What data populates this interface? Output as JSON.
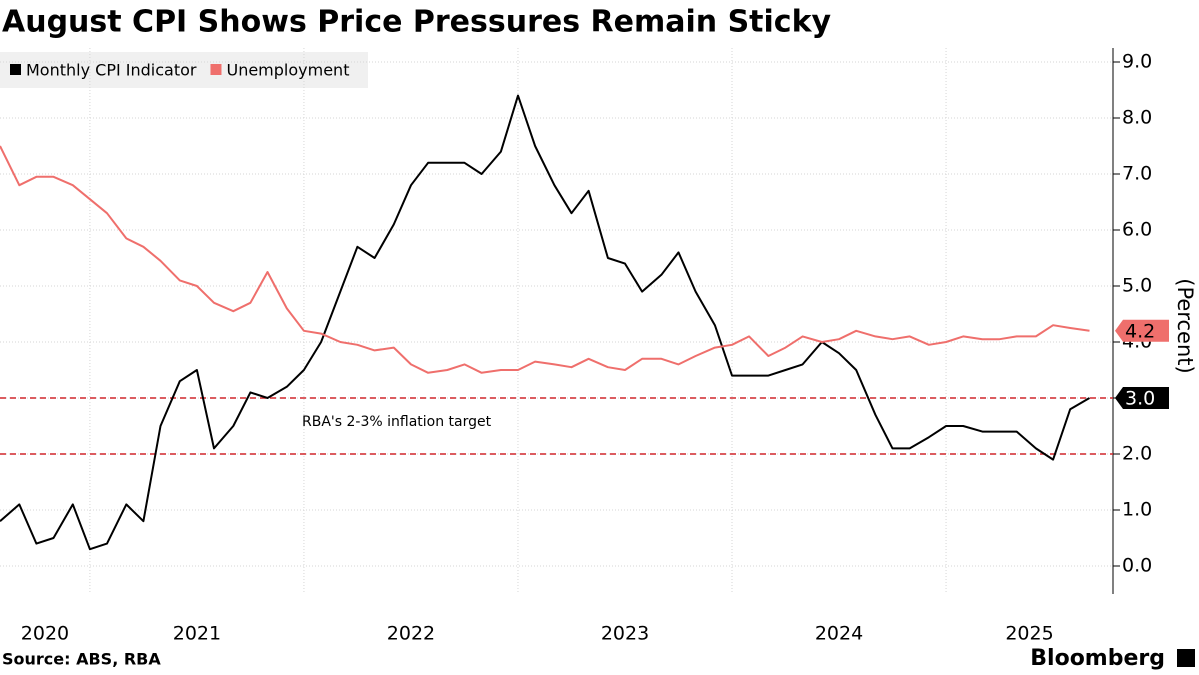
{
  "chart_data": {
    "type": "line",
    "title": "August CPI Shows Price Pressures Remain Sticky",
    "y_label": "(Percent)",
    "source": "Source: ABS, RBA",
    "brand": "Bloomberg",
    "annotation": "RBA's 2-3% inflation target",
    "x": [
      2020.58,
      2020.67,
      2020.75,
      2020.83,
      2020.92,
      2021.0,
      2021.08,
      2021.17,
      2021.25,
      2021.33,
      2021.42,
      2021.5,
      2021.58,
      2021.67,
      2021.75,
      2021.83,
      2021.92,
      2022.0,
      2022.08,
      2022.17,
      2022.25,
      2022.33,
      2022.42,
      2022.5,
      2022.58,
      2022.67,
      2022.75,
      2022.83,
      2022.92,
      2023.0,
      2023.08,
      2023.17,
      2023.25,
      2023.33,
      2023.42,
      2023.5,
      2023.58,
      2023.67,
      2023.75,
      2023.83,
      2023.92,
      2024.0,
      2024.08,
      2024.17,
      2024.25,
      2024.33,
      2024.42,
      2024.5,
      2024.58,
      2024.67,
      2024.75,
      2024.83,
      2024.92,
      2025.0,
      2025.08,
      2025.17,
      2025.25,
      2025.33,
      2025.42,
      2025.5,
      2025.58,
      2025.67
    ],
    "series": [
      {
        "name": "Monthly CPI Indicator",
        "color": "#000000",
        "values": [
          0.8,
          1.1,
          0.4,
          0.5,
          1.1,
          0.3,
          0.4,
          1.1,
          0.8,
          2.5,
          3.3,
          3.5,
          2.1,
          2.5,
          3.1,
          3.0,
          3.2,
          3.5,
          4.0,
          4.9,
          5.7,
          5.5,
          6.1,
          6.8,
          7.2,
          7.2,
          7.2,
          7.0,
          7.4,
          8.4,
          7.5,
          6.8,
          6.3,
          6.7,
          5.5,
          5.4,
          4.9,
          5.2,
          5.6,
          4.9,
          4.3,
          3.4,
          3.4,
          3.4,
          3.5,
          3.6,
          4.0,
          3.8,
          3.5,
          2.7,
          2.1,
          2.1,
          2.3,
          2.5,
          2.5,
          2.4,
          2.4,
          2.4,
          2.1,
          1.9,
          2.8,
          3.0
        ],
        "value_labels": [
          null,
          null,
          null,
          null,
          null,
          null,
          null,
          null,
          null,
          null,
          null,
          null,
          null,
          null,
          null,
          null,
          null,
          null,
          null,
          null,
          null,
          null,
          null,
          null,
          null,
          null,
          null,
          null,
          null,
          null,
          null,
          null,
          null,
          null,
          null,
          null,
          null,
          null,
          null,
          null,
          null,
          null,
          null,
          null,
          null,
          null,
          null,
          null,
          null,
          null,
          null,
          null,
          null,
          null,
          null,
          null,
          null,
          null,
          null,
          null,
          null,
          "3.0"
        ]
      },
      {
        "name": "Unemployment",
        "color": "#ef6f6c",
        "values": [
          7.5,
          6.8,
          6.95,
          6.95,
          6.8,
          6.55,
          6.3,
          5.85,
          5.7,
          5.45,
          5.1,
          5.0,
          4.7,
          4.55,
          4.7,
          5.25,
          4.6,
          4.2,
          4.15,
          4.0,
          3.95,
          3.85,
          3.9,
          3.6,
          3.45,
          3.5,
          3.6,
          3.45,
          3.5,
          3.5,
          3.65,
          3.6,
          3.55,
          3.7,
          3.55,
          3.5,
          3.7,
          3.7,
          3.6,
          3.75,
          3.9,
          3.95,
          4.1,
          3.75,
          3.9,
          4.1,
          4.0,
          4.05,
          4.2,
          4.1,
          4.05,
          4.1,
          3.95,
          4.0,
          4.1,
          4.05,
          4.05,
          4.1,
          4.1,
          4.3,
          4.25,
          4.2
        ],
        "value_labels": [
          null,
          null,
          null,
          null,
          null,
          null,
          null,
          null,
          null,
          null,
          null,
          null,
          null,
          null,
          null,
          null,
          null,
          null,
          null,
          null,
          null,
          null,
          null,
          null,
          null,
          null,
          null,
          null,
          null,
          null,
          null,
          null,
          null,
          null,
          null,
          null,
          null,
          null,
          null,
          null,
          null,
          null,
          null,
          null,
          null,
          null,
          null,
          null,
          null,
          null,
          null,
          null,
          null,
          null,
          null,
          null,
          null,
          null,
          null,
          null,
          null,
          "4.2"
        ]
      }
    ],
    "reference_lines": [
      2,
      3
    ],
    "reference_color": "#d1262b",
    "xlim": [
      2020.58,
      2025.78
    ],
    "xticks": [
      {
        "value": 2020.79,
        "label": "2020"
      },
      {
        "value": 2021.5,
        "label": "2021"
      },
      {
        "value": 2022.5,
        "label": "2022"
      },
      {
        "value": 2023.5,
        "label": "2023"
      },
      {
        "value": 2024.5,
        "label": "2024"
      },
      {
        "value": 2025.39,
        "label": "2025"
      }
    ],
    "xgrid": [
      2021,
      2022,
      2023,
      2024,
      2025
    ],
    "ylim": [
      -0.5,
      9.25
    ],
    "yticks": [
      {
        "value": 0,
        "label": "0.0"
      },
      {
        "value": 1,
        "label": "1.0"
      },
      {
        "value": 2,
        "label": "2.0"
      },
      {
        "value": 3,
        "label": "3.0"
      },
      {
        "value": 4,
        "label": "4.0"
      },
      {
        "value": 5,
        "label": "5.0"
      },
      {
        "value": 6,
        "label": "6.0"
      },
      {
        "value": 7,
        "label": "7.0"
      },
      {
        "value": 8,
        "label": "8.0"
      },
      {
        "value": 9,
        "label": "9.0"
      }
    ],
    "grid": true,
    "legend": "top-left"
  }
}
